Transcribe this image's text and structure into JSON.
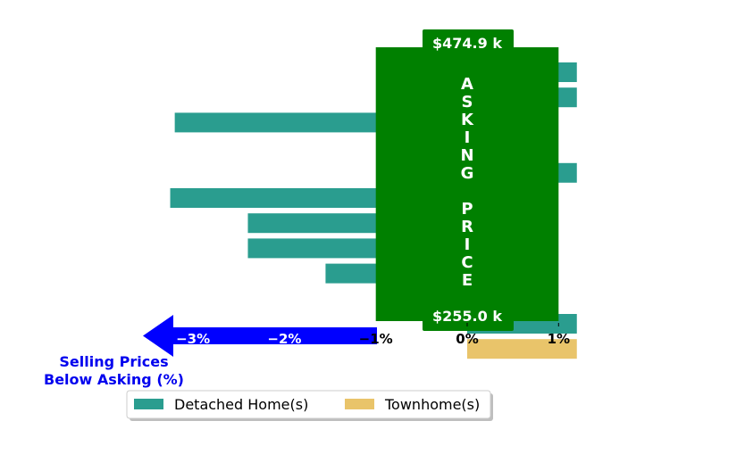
{
  "chart_data": {
    "type": "bar",
    "orientation": "horizontal",
    "x_unit": "%",
    "xlim": [
      -4.2,
      1.2
    ],
    "xticks": [
      -3,
      -2,
      -1,
      0,
      1
    ],
    "xtick_labels": [
      "−3%",
      "−2%",
      "−1%",
      "0%",
      "1%"
    ],
    "series": [
      {
        "name": "Detached Home(s)",
        "color": "#2a9d8f",
        "values": [
          1.2,
          1.2,
          -3.2,
          null,
          1.2,
          -3.25,
          -2.4,
          -2.4,
          -1.55,
          null,
          1.2,
          null
        ]
      },
      {
        "name": "Townhome(s)",
        "color": "#e9c46a",
        "values": [
          null,
          null,
          null,
          null,
          null,
          null,
          null,
          null,
          null,
          null,
          null,
          1.2
        ]
      }
    ],
    "asking_price_band": {
      "label": "ASKING PRICE",
      "top_label": "$474.9 k",
      "bottom_label": "$255.0 k",
      "color": "#008000"
    },
    "below_asking_arrow": {
      "label_line1": "Selling Prices",
      "label_line2": "Below Asking (%)",
      "color": "#0000ff",
      "tick_color": "#ffffff"
    },
    "legend": {
      "placement": "bottom-left",
      "entries": [
        "Detached Home(s)",
        "Townhome(s)"
      ]
    }
  }
}
